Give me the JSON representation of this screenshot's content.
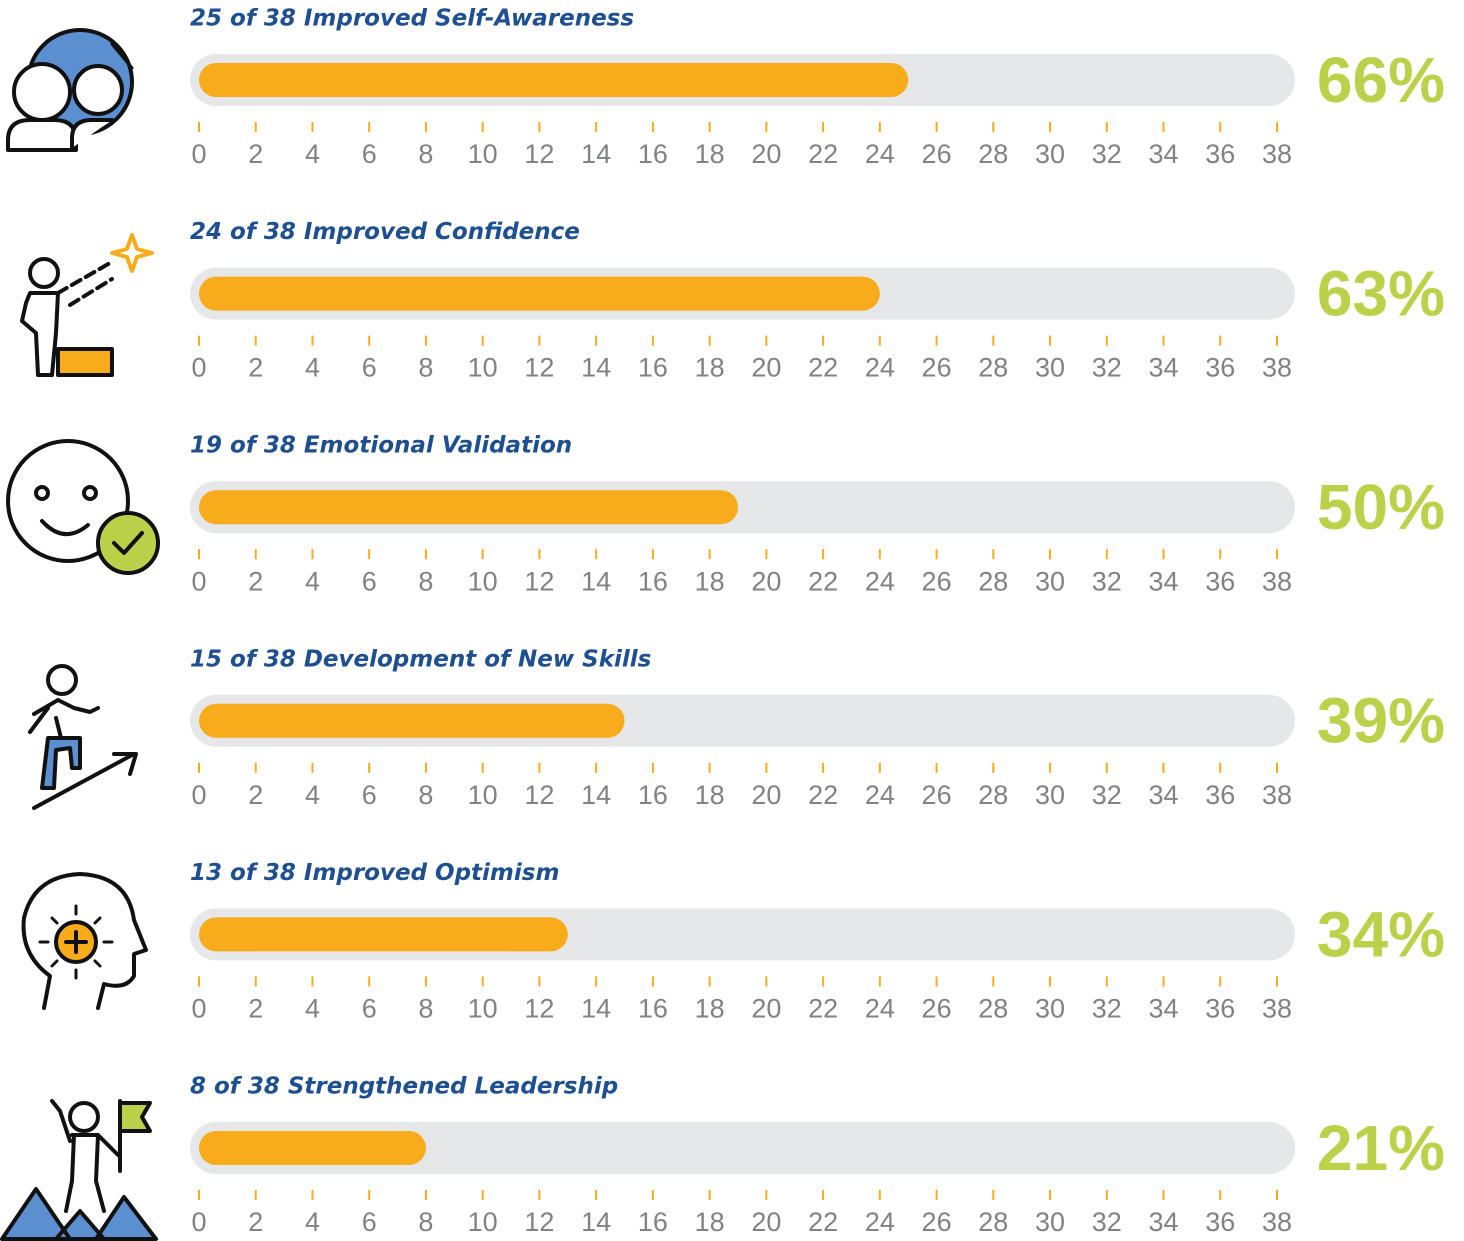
{
  "chart_data": [
    {
      "type": "progress",
      "title": "25 of 38 Improved Self-Awareness",
      "values": [
        25
      ],
      "share": {
        "value": 66,
        "label": "66%"
      },
      "xlim": [
        0,
        38
      ],
      "xticks": [
        0,
        2,
        4,
        6,
        8,
        10,
        12,
        14,
        16,
        18,
        20,
        22,
        24,
        26,
        28,
        30,
        32,
        34,
        36,
        38
      ],
      "color": "#f8ab1b",
      "track_color": "#e6e7e8"
    },
    {
      "type": "progress",
      "title": "24 of 38 Improved Confidence",
      "values": [
        24
      ],
      "share": {
        "value": 63,
        "label": "63%"
      },
      "xlim": [
        0,
        38
      ],
      "xticks": [
        0,
        2,
        4,
        6,
        8,
        10,
        12,
        14,
        16,
        18,
        20,
        22,
        24,
        26,
        28,
        30,
        32,
        34,
        36,
        38
      ],
      "color": "#f8ab1b",
      "track_color": "#e6e7e8"
    },
    {
      "type": "progress",
      "title": "19 of 38 Emotional Validation",
      "values": [
        19
      ],
      "share": {
        "value": 50,
        "label": "50%"
      },
      "xlim": [
        0,
        38
      ],
      "xticks": [
        0,
        2,
        4,
        6,
        8,
        10,
        12,
        14,
        16,
        18,
        20,
        22,
        24,
        26,
        28,
        30,
        32,
        34,
        36,
        38
      ],
      "color": "#f8ab1b",
      "track_color": "#e6e7e8"
    },
    {
      "type": "progress",
      "title": "15 of 38 Development of New Skills",
      "values": [
        15
      ],
      "share": {
        "value": 39,
        "label": "39%"
      },
      "xlim": [
        0,
        38
      ],
      "xticks": [
        0,
        2,
        4,
        6,
        8,
        10,
        12,
        14,
        16,
        18,
        20,
        22,
        24,
        26,
        28,
        30,
        32,
        34,
        36,
        38
      ],
      "color": "#f8ab1b",
      "track_color": "#e6e7e8"
    },
    {
      "type": "progress",
      "title": "13 of 38 Improved Optimism",
      "values": [
        13
      ],
      "share": {
        "value": 34,
        "label": "34%"
      },
      "xlim": [
        0,
        38
      ],
      "xticks": [
        0,
        2,
        4,
        6,
        8,
        10,
        12,
        14,
        16,
        18,
        20,
        22,
        24,
        26,
        28,
        30,
        32,
        34,
        36,
        38
      ],
      "color": "#f8ab1b",
      "track_color": "#e6e7e8"
    },
    {
      "type": "progress",
      "title": "8 of 38 Strengthened Leadership",
      "values": [
        8
      ],
      "share": {
        "value": 21,
        "label": "21%"
      },
      "xlim": [
        0,
        38
      ],
      "xticks": [
        0,
        2,
        4,
        6,
        8,
        10,
        12,
        14,
        16,
        18,
        20,
        22,
        24,
        26,
        28,
        30,
        32,
        34,
        36,
        38
      ],
      "color": "#f8ab1b",
      "track_color": "#e6e7e8"
    }
  ]
}
